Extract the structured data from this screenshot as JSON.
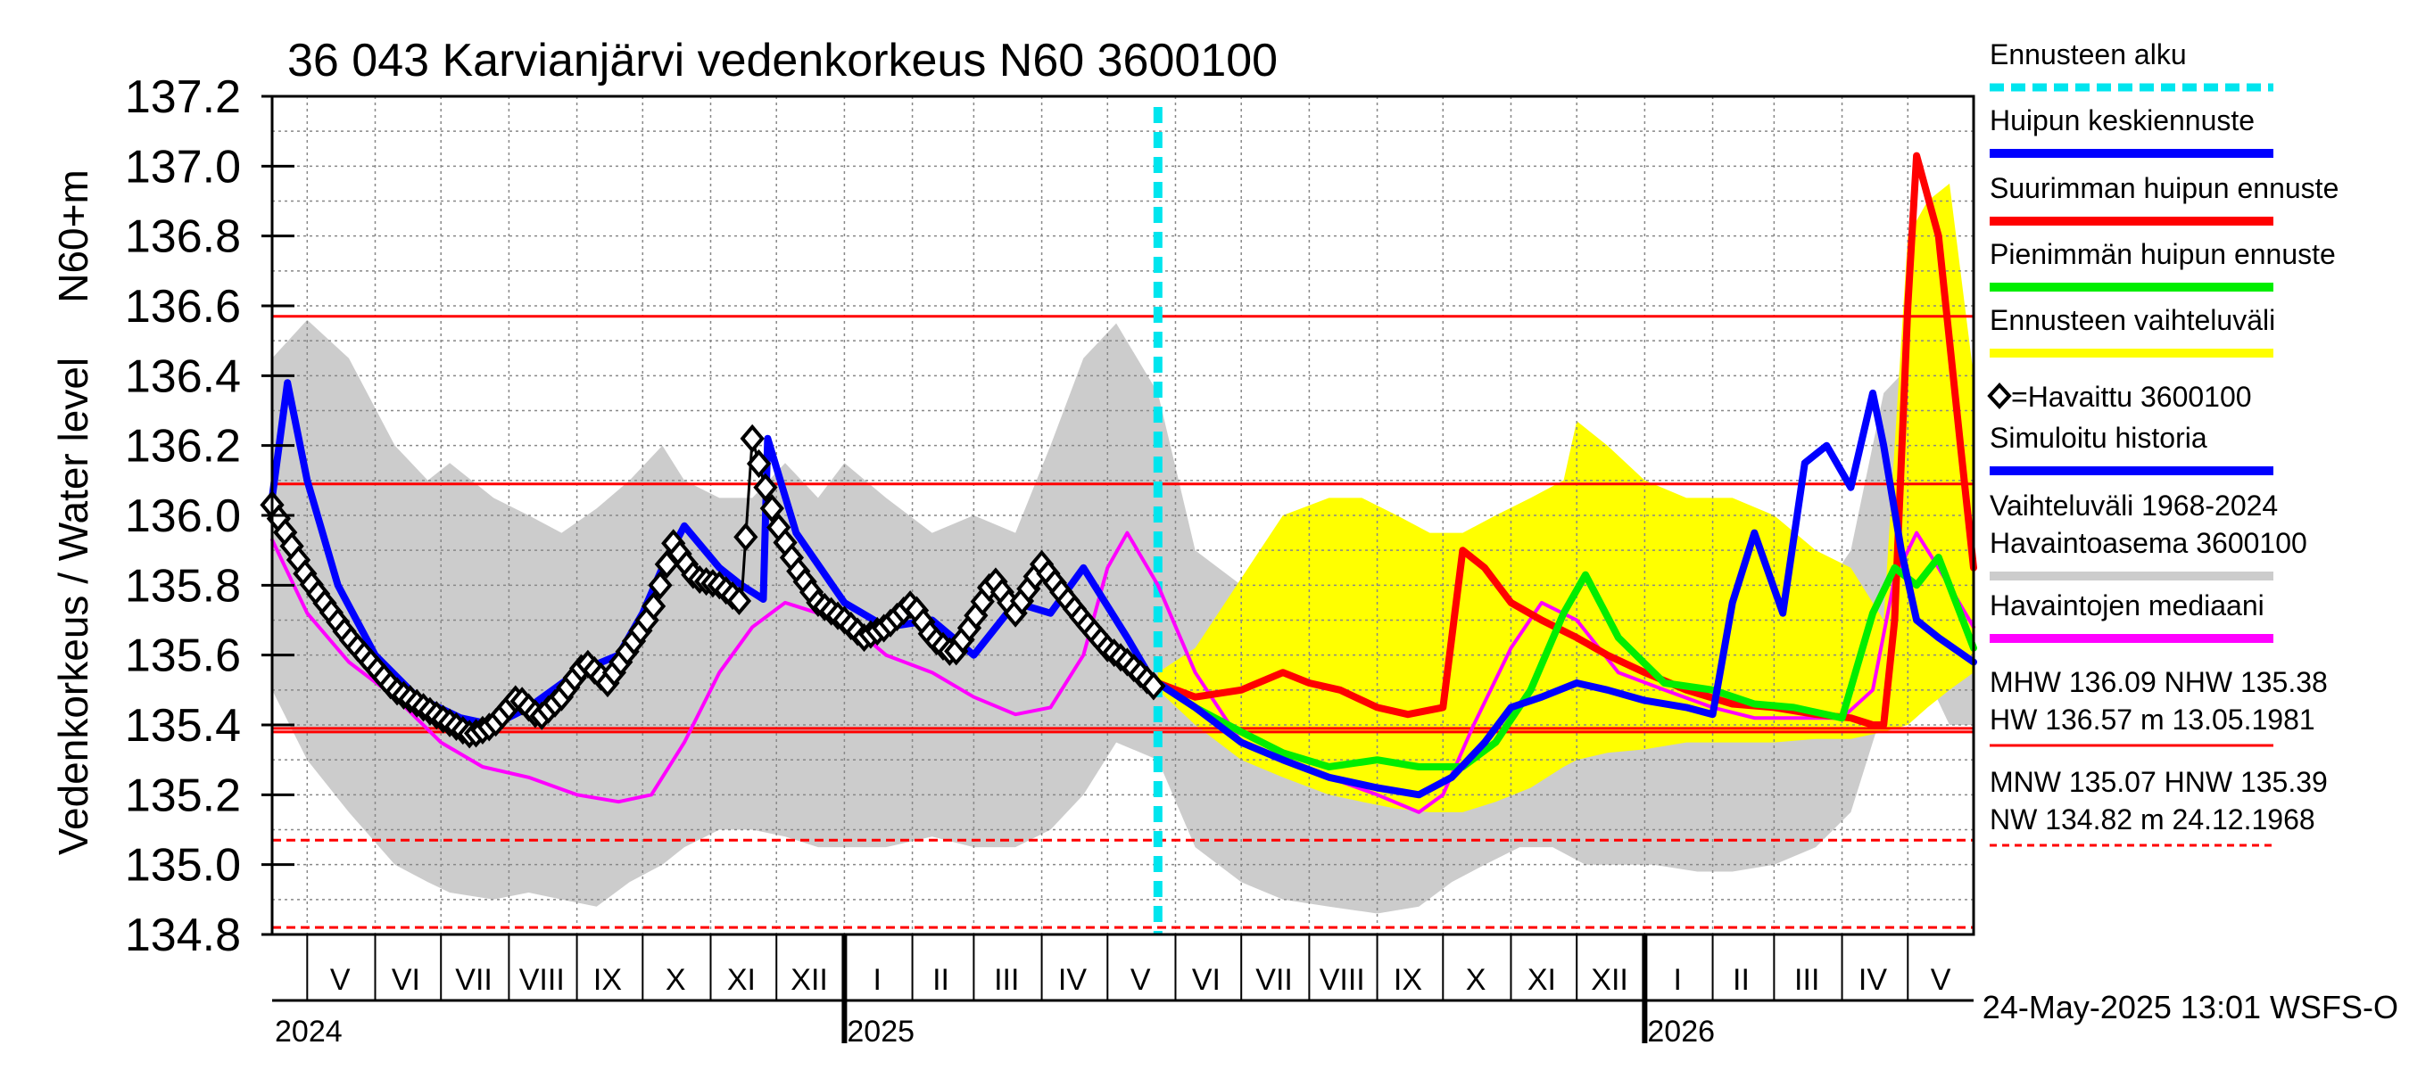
{
  "chart_data": {
    "type": "line",
    "title": "36 043 Karvianjärvi vedenkorkeus N60 3600100",
    "ylabel_top": "N60+m",
    "ylabel": "Vedenkorkeus / Water level",
    "ylim": [
      134.8,
      137.2
    ],
    "y_ticks": [
      "137.2",
      "137.0",
      "136.8",
      "136.6",
      "136.4",
      "136.2",
      "136.0",
      "135.8",
      "135.6",
      "135.4",
      "135.2",
      "135.0",
      "134.8"
    ],
    "x_start": "2024-04-15",
    "x_end": "2026-05-31",
    "forecast_start": "2025-05-24",
    "month_labels": [
      {
        "label": "V",
        "date": "2024-05-16"
      },
      {
        "label": "VI",
        "date": "2024-06-15"
      },
      {
        "label": "VII",
        "date": "2024-07-16"
      },
      {
        "label": "VIII",
        "date": "2024-08-16"
      },
      {
        "label": "IX",
        "date": "2024-09-15"
      },
      {
        "label": "X",
        "date": "2024-10-16"
      },
      {
        "label": "XI",
        "date": "2024-11-15"
      },
      {
        "label": "XII",
        "date": "2024-12-16"
      },
      {
        "label": "I",
        "date": "2025-01-16"
      },
      {
        "label": "II",
        "date": "2025-02-14"
      },
      {
        "label": "III",
        "date": "2025-03-16"
      },
      {
        "label": "IV",
        "date": "2025-04-15"
      },
      {
        "label": "V",
        "date": "2025-05-16"
      },
      {
        "label": "VI",
        "date": "2025-06-15"
      },
      {
        "label": "VII",
        "date": "2025-07-16"
      },
      {
        "label": "VIII",
        "date": "2025-08-16"
      },
      {
        "label": "IX",
        "date": "2025-09-15"
      },
      {
        "label": "X",
        "date": "2025-10-16"
      },
      {
        "label": "XI",
        "date": "2025-11-15"
      },
      {
        "label": "XII",
        "date": "2025-12-16"
      },
      {
        "label": "I",
        "date": "2026-01-16"
      },
      {
        "label": "II",
        "date": "2026-02-14"
      },
      {
        "label": "III",
        "date": "2026-03-16"
      },
      {
        "label": "IV",
        "date": "2026-04-15"
      },
      {
        "label": "V",
        "date": "2026-05-16"
      }
    ],
    "year_labels": [
      {
        "label": "2024",
        "date": "2024-04-15"
      },
      {
        "label": "2025",
        "date": "2025-01-01"
      },
      {
        "label": "2026",
        "date": "2026-01-01"
      }
    ],
    "reference_lines": [
      {
        "name": "HW",
        "value": 136.57,
        "style": "solid"
      },
      {
        "name": "MHW",
        "value": 136.09,
        "style": "solid"
      },
      {
        "name": "HNW",
        "value": 135.39,
        "style": "solid"
      },
      {
        "name": "NHW",
        "value": 135.38,
        "style": "solid"
      },
      {
        "name": "MNW",
        "value": 135.07,
        "style": "dashed"
      },
      {
        "name": "NW",
        "value": 134.82,
        "style": "dashed"
      }
    ],
    "range_band": {
      "x": [
        "2024-04-15",
        "2024-05-01",
        "2024-05-20",
        "2024-06-10",
        "2024-06-25",
        "2024-07-05",
        "2024-07-25",
        "2024-08-10",
        "2024-08-25",
        "2024-09-10",
        "2024-09-25",
        "2024-10-10",
        "2024-10-20",
        "2024-11-05",
        "2024-11-20",
        "2024-12-05",
        "2024-12-20",
        "2025-01-01",
        "2025-01-20",
        "2025-02-10",
        "2025-03-01",
        "2025-03-20",
        "2025-04-05",
        "2025-04-20",
        "2025-05-05",
        "2025-05-24",
        "2025-06-10",
        "2025-07-01",
        "2025-07-20",
        "2025-08-10",
        "2025-09-01",
        "2025-09-20",
        "2025-10-05",
        "2025-10-20",
        "2025-11-05",
        "2025-11-20",
        "2025-12-05",
        "2025-12-20",
        "2026-01-05",
        "2026-01-25",
        "2026-02-10",
        "2026-03-01",
        "2026-03-20",
        "2026-04-05",
        "2026-04-20",
        "2026-05-05",
        "2026-05-20",
        "2026-05-31"
      ],
      "high": [
        136.45,
        136.56,
        136.45,
        136.2,
        136.1,
        136.15,
        136.05,
        136.0,
        135.95,
        136.02,
        136.1,
        136.2,
        136.1,
        136.05,
        136.05,
        136.15,
        136.05,
        136.15,
        136.05,
        135.95,
        136.0,
        135.95,
        136.2,
        136.45,
        136.55,
        136.35,
        135.9,
        135.8,
        135.75,
        135.7,
        135.72,
        135.75,
        135.8,
        135.85,
        135.85,
        135.95,
        136.2,
        136.1,
        136.05,
        135.95,
        135.9,
        135.8,
        135.75,
        135.9,
        136.35,
        136.45,
        136.15,
        135.7
      ],
      "low": [
        135.5,
        135.3,
        135.15,
        135.0,
        134.95,
        134.92,
        134.9,
        134.92,
        134.9,
        134.88,
        134.95,
        135.0,
        135.05,
        135.1,
        135.1,
        135.08,
        135.05,
        135.05,
        135.05,
        135.08,
        135.05,
        135.05,
        135.1,
        135.2,
        135.35,
        135.3,
        135.05,
        134.95,
        134.9,
        134.88,
        134.86,
        134.88,
        134.95,
        135.0,
        135.05,
        135.05,
        135.0,
        135.0,
        135.0,
        134.98,
        134.98,
        135.0,
        135.05,
        135.15,
        135.45,
        135.6,
        135.4,
        135.4
      ]
    },
    "forecast_band": {
      "x": [
        "2025-05-24",
        "2025-06-10",
        "2025-07-01",
        "2025-07-20",
        "2025-08-10",
        "2025-08-25",
        "2025-09-10",
        "2025-09-25",
        "2025-10-10",
        "2025-10-25",
        "2025-11-10",
        "2025-11-25",
        "2025-12-01",
        "2025-12-15",
        "2026-01-01",
        "2026-01-20",
        "2026-02-10",
        "2026-03-01",
        "2026-03-20",
        "2026-04-05",
        "2026-04-20",
        "2026-05-01",
        "2026-05-10",
        "2026-05-20",
        "2026-05-31"
      ],
      "high": [
        135.55,
        135.62,
        135.82,
        136.0,
        136.05,
        136.05,
        136.0,
        135.95,
        135.95,
        136.0,
        136.05,
        136.1,
        136.27,
        136.2,
        136.1,
        136.05,
        136.05,
        136.0,
        135.9,
        135.85,
        135.7,
        136.8,
        136.9,
        136.95,
        136.4
      ],
      "low": [
        135.5,
        135.4,
        135.3,
        135.25,
        135.2,
        135.18,
        135.16,
        135.15,
        135.15,
        135.18,
        135.22,
        135.28,
        135.3,
        135.32,
        135.33,
        135.35,
        135.35,
        135.35,
        135.36,
        135.36,
        135.38,
        135.4,
        135.45,
        135.5,
        135.55
      ]
    },
    "series": [
      {
        "name": "Havaintojen mediaani",
        "color": "#ff00ff",
        "x": [
          "2024-04-15",
          "2024-05-01",
          "2024-05-20",
          "2024-06-10",
          "2024-07-01",
          "2024-07-20",
          "2024-08-10",
          "2024-09-01",
          "2024-09-20",
          "2024-10-05",
          "2024-10-20",
          "2024-11-05",
          "2024-11-20",
          "2024-12-05",
          "2024-12-20",
          "2025-01-05",
          "2025-01-20",
          "2025-02-10",
          "2025-03-01",
          "2025-03-20",
          "2025-04-05",
          "2025-04-20",
          "2025-05-01",
          "2025-05-10",
          "2025-05-24",
          "2025-06-10",
          "2025-07-01",
          "2025-07-20",
          "2025-08-10",
          "2025-09-01",
          "2025-09-20",
          "2025-10-01",
          "2025-10-15",
          "2025-11-01",
          "2025-11-15",
          "2025-12-01",
          "2025-12-20",
          "2026-01-10",
          "2026-02-01",
          "2026-02-20",
          "2026-03-10",
          "2026-04-01",
          "2026-04-15",
          "2026-04-25",
          "2026-05-05",
          "2026-05-15",
          "2026-05-31"
        ],
        "y": [
          135.93,
          135.72,
          135.58,
          135.48,
          135.35,
          135.28,
          135.25,
          135.2,
          135.18,
          135.2,
          135.35,
          135.55,
          135.68,
          135.75,
          135.72,
          135.68,
          135.6,
          135.55,
          135.48,
          135.43,
          135.45,
          135.6,
          135.85,
          135.95,
          135.8,
          135.55,
          135.35,
          135.3,
          135.25,
          135.2,
          135.15,
          135.2,
          135.4,
          135.62,
          135.75,
          135.7,
          135.55,
          135.5,
          135.45,
          135.42,
          135.42,
          135.42,
          135.5,
          135.82,
          135.95,
          135.85,
          135.68
        ]
      },
      {
        "name": "Simuloitu historia",
        "color": "#0000ff",
        "x": [
          "2024-04-15",
          "2024-04-22",
          "2024-05-01",
          "2024-05-15",
          "2024-06-01",
          "2024-06-20",
          "2024-07-10",
          "2024-07-25",
          "2024-08-10",
          "2024-09-01",
          "2024-09-20",
          "2024-10-01",
          "2024-10-10",
          "2024-10-20",
          "2024-11-05",
          "2024-11-15",
          "2024-11-25",
          "2024-11-27",
          "2024-12-10",
          "2025-01-01",
          "2025-01-20",
          "2025-02-10",
          "2025-03-01",
          "2025-03-20",
          "2025-04-05",
          "2025-04-20",
          "2025-05-10",
          "2025-05-24"
        ],
        "y": [
          136.05,
          136.38,
          136.1,
          135.8,
          135.6,
          135.48,
          135.42,
          135.4,
          135.45,
          135.55,
          135.6,
          135.72,
          135.85,
          135.97,
          135.85,
          135.8,
          135.76,
          136.22,
          135.95,
          135.75,
          135.68,
          135.7,
          135.6,
          135.75,
          135.72,
          135.85,
          135.65,
          135.5
        ]
      },
      {
        "name": "Suurimman huipun ennuste",
        "color": "#ff0000",
        "x": [
          "2025-05-24",
          "2025-06-10",
          "2025-07-01",
          "2025-07-20",
          "2025-08-01",
          "2025-08-15",
          "2025-09-01",
          "2025-09-15",
          "2025-10-01",
          "2025-10-10",
          "2025-10-20",
          "2025-11-01",
          "2025-11-15",
          "2025-12-01",
          "2025-12-15",
          "2026-01-01",
          "2026-01-20",
          "2026-02-10",
          "2026-03-01",
          "2026-03-20",
          "2026-04-05",
          "2026-04-15",
          "2026-04-20",
          "2026-04-25",
          "2026-05-01",
          "2026-05-05",
          "2026-05-15",
          "2026-05-25",
          "2026-05-31"
        ],
        "y": [
          135.52,
          135.48,
          135.5,
          135.55,
          135.52,
          135.5,
          135.45,
          135.43,
          135.45,
          135.9,
          135.85,
          135.75,
          135.7,
          135.65,
          135.6,
          135.55,
          135.5,
          135.46,
          135.45,
          135.43,
          135.42,
          135.4,
          135.4,
          135.7,
          136.6,
          137.03,
          136.8,
          136.2,
          135.85
        ]
      },
      {
        "name": "Pienimmän huipun ennuste",
        "color": "#00ee00",
        "x": [
          "2025-05-24",
          "2025-06-10",
          "2025-07-01",
          "2025-07-20",
          "2025-08-10",
          "2025-09-01",
          "2025-09-20",
          "2025-10-10",
          "2025-10-25",
          "2025-11-10",
          "2025-11-25",
          "2025-12-05",
          "2025-12-20",
          "2026-01-10",
          "2026-02-01",
          "2026-02-20",
          "2026-03-10",
          "2026-04-01",
          "2026-04-15",
          "2026-04-25",
          "2026-05-05",
          "2026-05-15",
          "2026-05-31"
        ],
        "y": [
          135.52,
          135.45,
          135.38,
          135.32,
          135.28,
          135.3,
          135.28,
          135.28,
          135.35,
          135.5,
          135.72,
          135.83,
          135.65,
          135.52,
          135.5,
          135.46,
          135.45,
          135.42,
          135.72,
          135.85,
          135.8,
          135.88,
          135.62
        ]
      },
      {
        "name": "Huipun keskiennuste",
        "color": "#0000ff",
        "x": [
          "2025-05-24",
          "2025-06-10",
          "2025-07-01",
          "2025-07-20",
          "2025-08-10",
          "2025-09-01",
          "2025-09-20",
          "2025-10-05",
          "2025-10-20",
          "2025-11-01",
          "2025-11-15",
          "2025-12-01",
          "2025-12-15",
          "2026-01-01",
          "2026-01-20",
          "2026-02-01",
          "2026-02-10",
          "2026-02-20",
          "2026-03-05",
          "2026-03-15",
          "2026-03-25",
          "2026-04-05",
          "2026-04-15",
          "2026-04-20",
          "2026-04-28",
          "2026-05-05",
          "2026-05-15",
          "2026-05-31"
        ],
        "y": [
          135.52,
          135.45,
          135.35,
          135.3,
          135.25,
          135.22,
          135.2,
          135.25,
          135.35,
          135.45,
          135.48,
          135.52,
          135.5,
          135.47,
          135.45,
          135.43,
          135.75,
          135.95,
          135.72,
          136.15,
          136.2,
          136.08,
          136.35,
          136.2,
          135.9,
          135.7,
          135.65,
          135.58
        ]
      },
      {
        "name": "=Havaittu 3600100",
        "color": "#000000",
        "marker": "diamond",
        "x": [
          "2024-04-15",
          "2024-05-01",
          "2024-05-20",
          "2024-06-10",
          "2024-07-01",
          "2024-07-15",
          "2024-07-25",
          "2024-08-05",
          "2024-08-15",
          "2024-08-25",
          "2024-09-05",
          "2024-09-15",
          "2024-09-25",
          "2024-10-05",
          "2024-10-15",
          "2024-10-25",
          "2024-11-05",
          "2024-11-15",
          "2024-11-20",
          "2024-11-25",
          "2024-12-01",
          "2024-12-10",
          "2024-12-20",
          "2025-01-01",
          "2025-01-10",
          "2025-01-20",
          "2025-02-01",
          "2025-02-10",
          "2025-02-20",
          "2025-03-01",
          "2025-03-10",
          "2025-03-20",
          "2025-04-01",
          "2025-04-10",
          "2025-04-20",
          "2025-05-01",
          "2025-05-10",
          "2025-05-24"
        ],
        "y": [
          136.03,
          135.82,
          135.65,
          135.5,
          135.42,
          135.37,
          135.4,
          135.48,
          135.42,
          135.48,
          135.58,
          135.52,
          135.62,
          135.72,
          135.92,
          135.82,
          135.8,
          135.75,
          136.22,
          136.1,
          135.98,
          135.85,
          135.75,
          135.7,
          135.65,
          135.68,
          135.75,
          135.65,
          135.6,
          135.7,
          135.82,
          135.72,
          135.86,
          135.78,
          135.7,
          135.62,
          135.58,
          135.5
        ]
      }
    ],
    "legend": [
      {
        "label": "Ennusteen alku",
        "color": "#00e5ee",
        "style": "dashed"
      },
      {
        "label": "Huipun keskiennuste",
        "color": "#0000ff",
        "style": "solid"
      },
      {
        "label": "Suurimman huipun ennuste",
        "color": "#ff0000",
        "style": "solid"
      },
      {
        "label": "Pienimmän huipun ennuste",
        "color": "#00ee00",
        "style": "solid"
      },
      {
        "label": "Ennusteen vaihteluväli",
        "color": "#ffff00",
        "style": "solid"
      },
      {
        "label": "=Havaittu 3600100",
        "color": "#000000",
        "style": "marker"
      },
      {
        "label": "Simuloitu historia",
        "color": "#0000ff",
        "style": "solid"
      },
      {
        "label": "Vaihteluväli 1968-2024",
        "label2": " Havaintoasema 3600100",
        "color": "#cccccc",
        "style": "solid"
      },
      {
        "label": "Havaintojen mediaani",
        "color": "#ff00ff",
        "style": "solid"
      }
    ],
    "stats": [
      {
        "line1": "MHW 136.09 NHW 135.38",
        "line2": "HW 136.57 m 13.05.1981",
        "color": "#ff0000",
        "style": "solid"
      },
      {
        "line1": "MNW 135.07 HNW 135.39",
        "line2": "NW 134.82 m 24.12.1968",
        "color": "#ff0000",
        "style": "dashed"
      }
    ],
    "footer": "24-May-2025 13:01 WSFS-O",
    "colors": {
      "range_band": "#cccccc",
      "forecast_band": "#ffff00",
      "forecast_start": "#00e5ee",
      "reference": "#ff0000",
      "grid": "#888888"
    },
    "grid": true
  }
}
